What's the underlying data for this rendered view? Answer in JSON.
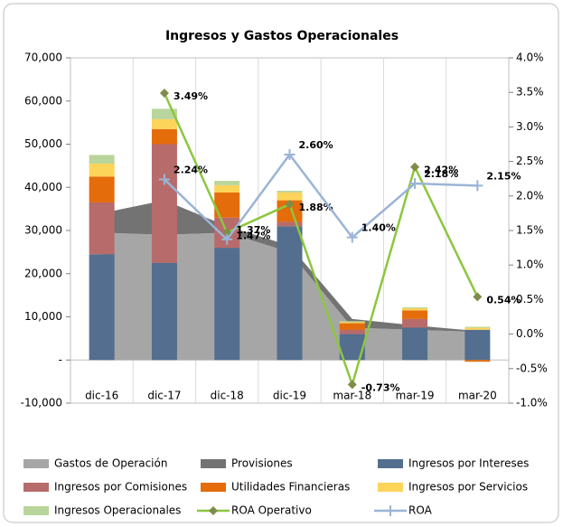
{
  "chart_data": {
    "type": "combo",
    "title": "Ingresos y Gastos Operacionales",
    "categories": [
      "dic-16",
      "dic-17",
      "dic-18",
      "dic-19",
      "mar-18",
      "mar-19",
      "mar-20"
    ],
    "ylim": [
      -10000,
      70000
    ],
    "yticks": [
      {
        "value": -10000,
        "label": "-10,000"
      },
      {
        "value": 0,
        "label": "-"
      },
      {
        "value": 10000,
        "label": "10,000"
      },
      {
        "value": 20000,
        "label": "20,000"
      },
      {
        "value": 30000,
        "label": "30,000"
      },
      {
        "value": 40000,
        "label": "40,000"
      },
      {
        "value": 50000,
        "label": "50,000"
      },
      {
        "value": 60000,
        "label": "60,000"
      },
      {
        "value": 70000,
        "label": "70,000"
      }
    ],
    "y2lim": [
      -1.0,
      4.0
    ],
    "y2ticks": [
      {
        "value": -1.0,
        "label": "-1.0%"
      },
      {
        "value": -0.5,
        "label": "-0.5%"
      },
      {
        "value": 0.0,
        "label": "0.0%"
      },
      {
        "value": 0.5,
        "label": "0.5%"
      },
      {
        "value": 1.0,
        "label": "1.0%"
      },
      {
        "value": 1.5,
        "label": "1.5%"
      },
      {
        "value": 2.0,
        "label": "2.0%"
      },
      {
        "value": 2.5,
        "label": "2.5%"
      },
      {
        "value": 3.0,
        "label": "3.0%"
      },
      {
        "value": 3.5,
        "label": "3.5%"
      },
      {
        "value": 4.0,
        "label": "4.0%"
      }
    ],
    "legend": "bottom",
    "series": [
      {
        "name": "Gastos de Operación",
        "kind": "area",
        "color": "#a6a6a6",
        "values": [
          29500,
          29000,
          29500,
          25000,
          7500,
          7000,
          6500
        ]
      },
      {
        "name": "Provisiones",
        "kind": "area",
        "color": "#737373",
        "values": [
          4500,
          8000,
          1500,
          1500,
          2000,
          1000,
          200
        ]
      },
      {
        "name": "Ingresos por Intereses",
        "kind": "bar",
        "color": "#536e8e",
        "values": [
          24500,
          22500,
          26000,
          31000,
          6000,
          7500,
          7000
        ]
      },
      {
        "name": "Ingresos por Comisiones",
        "kind": "bar",
        "color": "#b76b6b",
        "values": [
          12000,
          27500,
          7000,
          1000,
          1000,
          2000,
          0
        ]
      },
      {
        "name": "Utilidades Financieras",
        "kind": "bar",
        "color": "#e46c0a",
        "values": [
          6000,
          3500,
          5800,
          5000,
          1500,
          2000,
          -400
        ]
      },
      {
        "name": "Ingresos por Servicios",
        "kind": "bar",
        "color": "#fcd45a",
        "values": [
          3000,
          2300,
          1700,
          1800,
          300,
          500,
          500
        ]
      },
      {
        "name": "Ingresos Operacionales",
        "kind": "bar",
        "color": "#b9d59b",
        "values": [
          2000,
          2400,
          1000,
          400,
          200,
          200,
          200
        ]
      },
      {
        "name": "ROA Operativo",
        "kind": "line",
        "axis": "y2",
        "color": "#8cc63f",
        "marker": "diamond",
        "marker_color": "#7f8c4a",
        "values": [
          null,
          3.49,
          1.47,
          1.88,
          -0.73,
          2.42,
          0.54
        ],
        "value_labels": [
          null,
          "3.49%",
          "1.47%",
          "1.88%",
          "-0.73%",
          "2.42%",
          "0.54%"
        ]
      },
      {
        "name": "ROA",
        "kind": "line",
        "axis": "y2",
        "color": "#9bb4d6",
        "marker": "plus",
        "marker_color": "#9bb4d6",
        "values": [
          null,
          2.24,
          1.37,
          2.6,
          1.4,
          2.18,
          2.15
        ],
        "value_labels": [
          null,
          "2.24%",
          "1.37%",
          "2.60%",
          "1.40%",
          "2.18%",
          "2.15%"
        ]
      }
    ]
  }
}
